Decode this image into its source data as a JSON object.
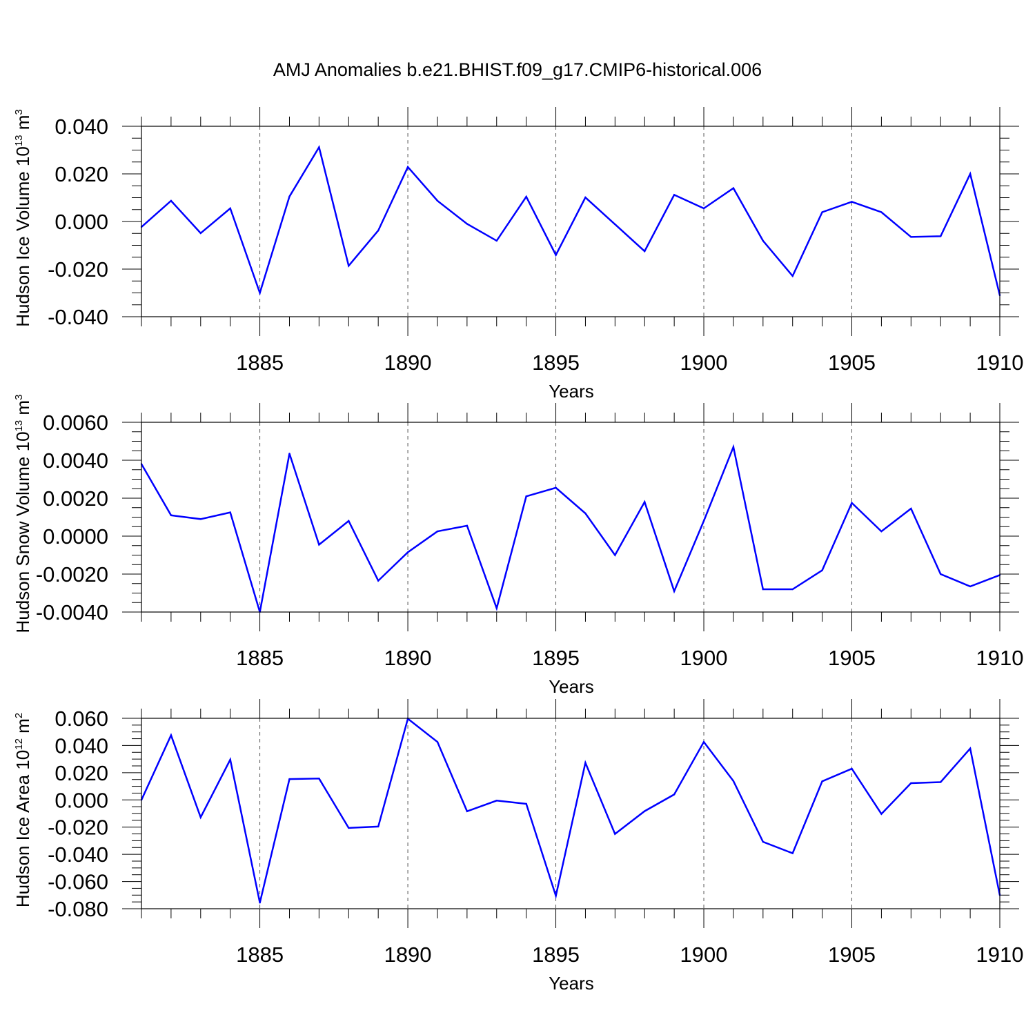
{
  "title": "AMJ Anomalies b.e21.BHIST.f09_g17.CMIP6-historical.006",
  "chart_data": [
    {
      "type": "line",
      "name": "ice-volume",
      "ylabel": "Hudson Ice Volume 10",
      "ylabel_exp": "13",
      "ylabel_unit": " m",
      "ylabel_unit_exp": "3",
      "xlabel": "Years",
      "line_color": "#0000ff",
      "xlim": [
        1881,
        1910
      ],
      "ylim": [
        -0.04,
        0.04
      ],
      "yticks": [
        -0.04,
        -0.02,
        0.0,
        0.02,
        0.04
      ],
      "ytick_labels": [
        "-0.040",
        "-0.020",
        "0.000",
        "0.020",
        "0.040"
      ],
      "xticks": [
        1885,
        1890,
        1895,
        1900,
        1905,
        1910
      ],
      "xtick_labels": [
        "1885",
        "1890",
        "1895",
        "1900",
        "1905",
        "1910"
      ],
      "x": [
        1881,
        1882,
        1883,
        1884,
        1885,
        1886,
        1887,
        1888,
        1889,
        1890,
        1891,
        1892,
        1893,
        1894,
        1895,
        1896,
        1897,
        1898,
        1899,
        1900,
        1901,
        1902,
        1903,
        1904,
        1905,
        1906,
        1907,
        1908,
        1909,
        1910
      ],
      "values": [
        -0.0023,
        0.0087,
        -0.0049,
        0.0055,
        -0.03,
        0.0105,
        0.0312,
        -0.0186,
        -0.0038,
        0.0229,
        0.0087,
        -0.001,
        -0.0081,
        0.0104,
        -0.0141,
        0.0101,
        -0.0012,
        -0.0125,
        0.0112,
        0.0055,
        0.014,
        -0.0081,
        -0.0229,
        0.0039,
        0.0083,
        0.0039,
        -0.0065,
        -0.0062,
        0.02,
        -0.031
      ]
    },
    {
      "type": "line",
      "name": "snow-volume",
      "ylabel": "Hudson Snow Volume 10",
      "ylabel_exp": "13",
      "ylabel_unit": " m",
      "ylabel_unit_exp": "3",
      "xlabel": "Years",
      "line_color": "#0000ff",
      "xlim": [
        1881,
        1910
      ],
      "ylim": [
        -0.004,
        0.006
      ],
      "yticks": [
        -0.004,
        -0.002,
        0.0,
        0.002,
        0.004,
        0.006
      ],
      "ytick_labels": [
        "-0.0040",
        "-0.0020",
        "0.0000",
        "0.0020",
        "0.0040",
        "0.0060"
      ],
      "xticks": [
        1885,
        1890,
        1895,
        1900,
        1905,
        1910
      ],
      "xtick_labels": [
        "1885",
        "1890",
        "1895",
        "1900",
        "1905",
        "1910"
      ],
      "x": [
        1881,
        1882,
        1883,
        1884,
        1885,
        1886,
        1887,
        1888,
        1889,
        1890,
        1891,
        1892,
        1893,
        1894,
        1895,
        1896,
        1897,
        1898,
        1899,
        1900,
        1901,
        1902,
        1903,
        1904,
        1905,
        1906,
        1907,
        1908,
        1909,
        1910
      ],
      "values": [
        0.0038,
        0.0011,
        0.0009,
        0.00125,
        -0.004,
        0.00435,
        -0.00045,
        0.0008,
        -0.00235,
        -0.00085,
        0.00025,
        0.00055,
        -0.0038,
        0.0021,
        0.00255,
        0.0012,
        -0.001,
        0.0018,
        -0.0029,
        0.0008,
        0.0047,
        -0.0028,
        -0.0028,
        -0.0018,
        0.00175,
        0.00025,
        0.00145,
        -0.002,
        -0.00265,
        -0.00205
      ]
    },
    {
      "type": "line",
      "name": "ice-area",
      "ylabel": "Hudson Ice Area 10",
      "ylabel_exp": "12",
      "ylabel_unit": " m",
      "ylabel_unit_exp": "2",
      "xlabel": "Years",
      "line_color": "#0000ff",
      "xlim": [
        1881,
        1910
      ],
      "ylim": [
        -0.08,
        0.06
      ],
      "yticks": [
        -0.08,
        -0.06,
        -0.04,
        -0.02,
        0.0,
        0.02,
        0.04,
        0.06
      ],
      "ytick_labels": [
        "-0.080",
        "-0.060",
        "-0.040",
        "-0.020",
        "0.000",
        "0.020",
        "0.040",
        "0.060"
      ],
      "xticks": [
        1885,
        1890,
        1895,
        1900,
        1905,
        1910
      ],
      "xtick_labels": [
        "1885",
        "1890",
        "1895",
        "1900",
        "1905",
        "1910"
      ],
      "x": [
        1881,
        1882,
        1883,
        1884,
        1885,
        1886,
        1887,
        1888,
        1889,
        1890,
        1891,
        1892,
        1893,
        1894,
        1895,
        1896,
        1897,
        1898,
        1899,
        1900,
        1901,
        1902,
        1903,
        1904,
        1905,
        1906,
        1907,
        1908,
        1909,
        1910
      ],
      "values": [
        0.0,
        0.0475,
        -0.0128,
        0.0296,
        -0.0756,
        0.0153,
        0.0157,
        -0.0206,
        -0.0196,
        0.0597,
        0.0426,
        -0.0084,
        -0.0005,
        -0.0029,
        -0.0705,
        0.0273,
        -0.025,
        -0.0083,
        0.004,
        0.0426,
        0.0139,
        -0.0308,
        -0.0392,
        0.0137,
        0.0229,
        -0.0103,
        0.0123,
        0.0131,
        0.0378,
        -0.07
      ]
    }
  ]
}
